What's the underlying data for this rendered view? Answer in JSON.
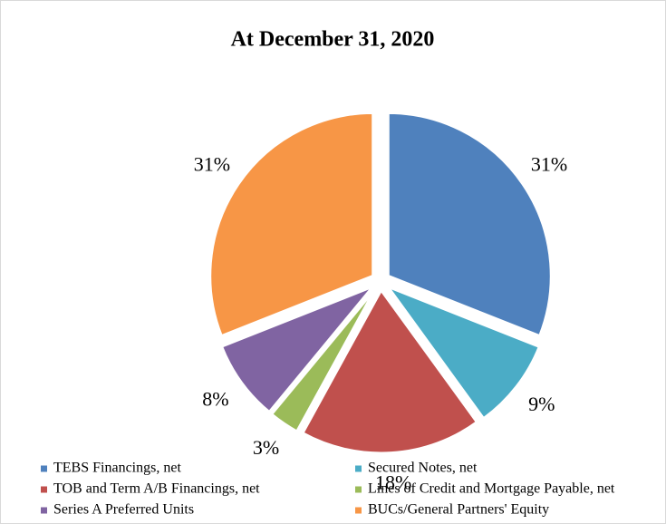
{
  "chart_data": {
    "type": "pie",
    "title": "At December 31, 2020",
    "categories": [
      "TEBS Financings, net",
      "Secured Notes, net",
      "TOB and Term A/B Financings, net",
      "Lines of Credit and Mortgage Payable, net",
      "Series A Preferred Units",
      "BUCs/General Partners' Equity"
    ],
    "values": [
      31,
      9,
      18,
      3,
      8,
      31
    ],
    "value_labels": [
      "31%",
      "9%",
      "18%",
      "3%",
      "8%",
      "31%"
    ],
    "colors": [
      "#4f81bd",
      "#4bacc6",
      "#c0504d",
      "#9bbb59",
      "#8064a2",
      "#f79646"
    ],
    "legend": "bottom"
  }
}
